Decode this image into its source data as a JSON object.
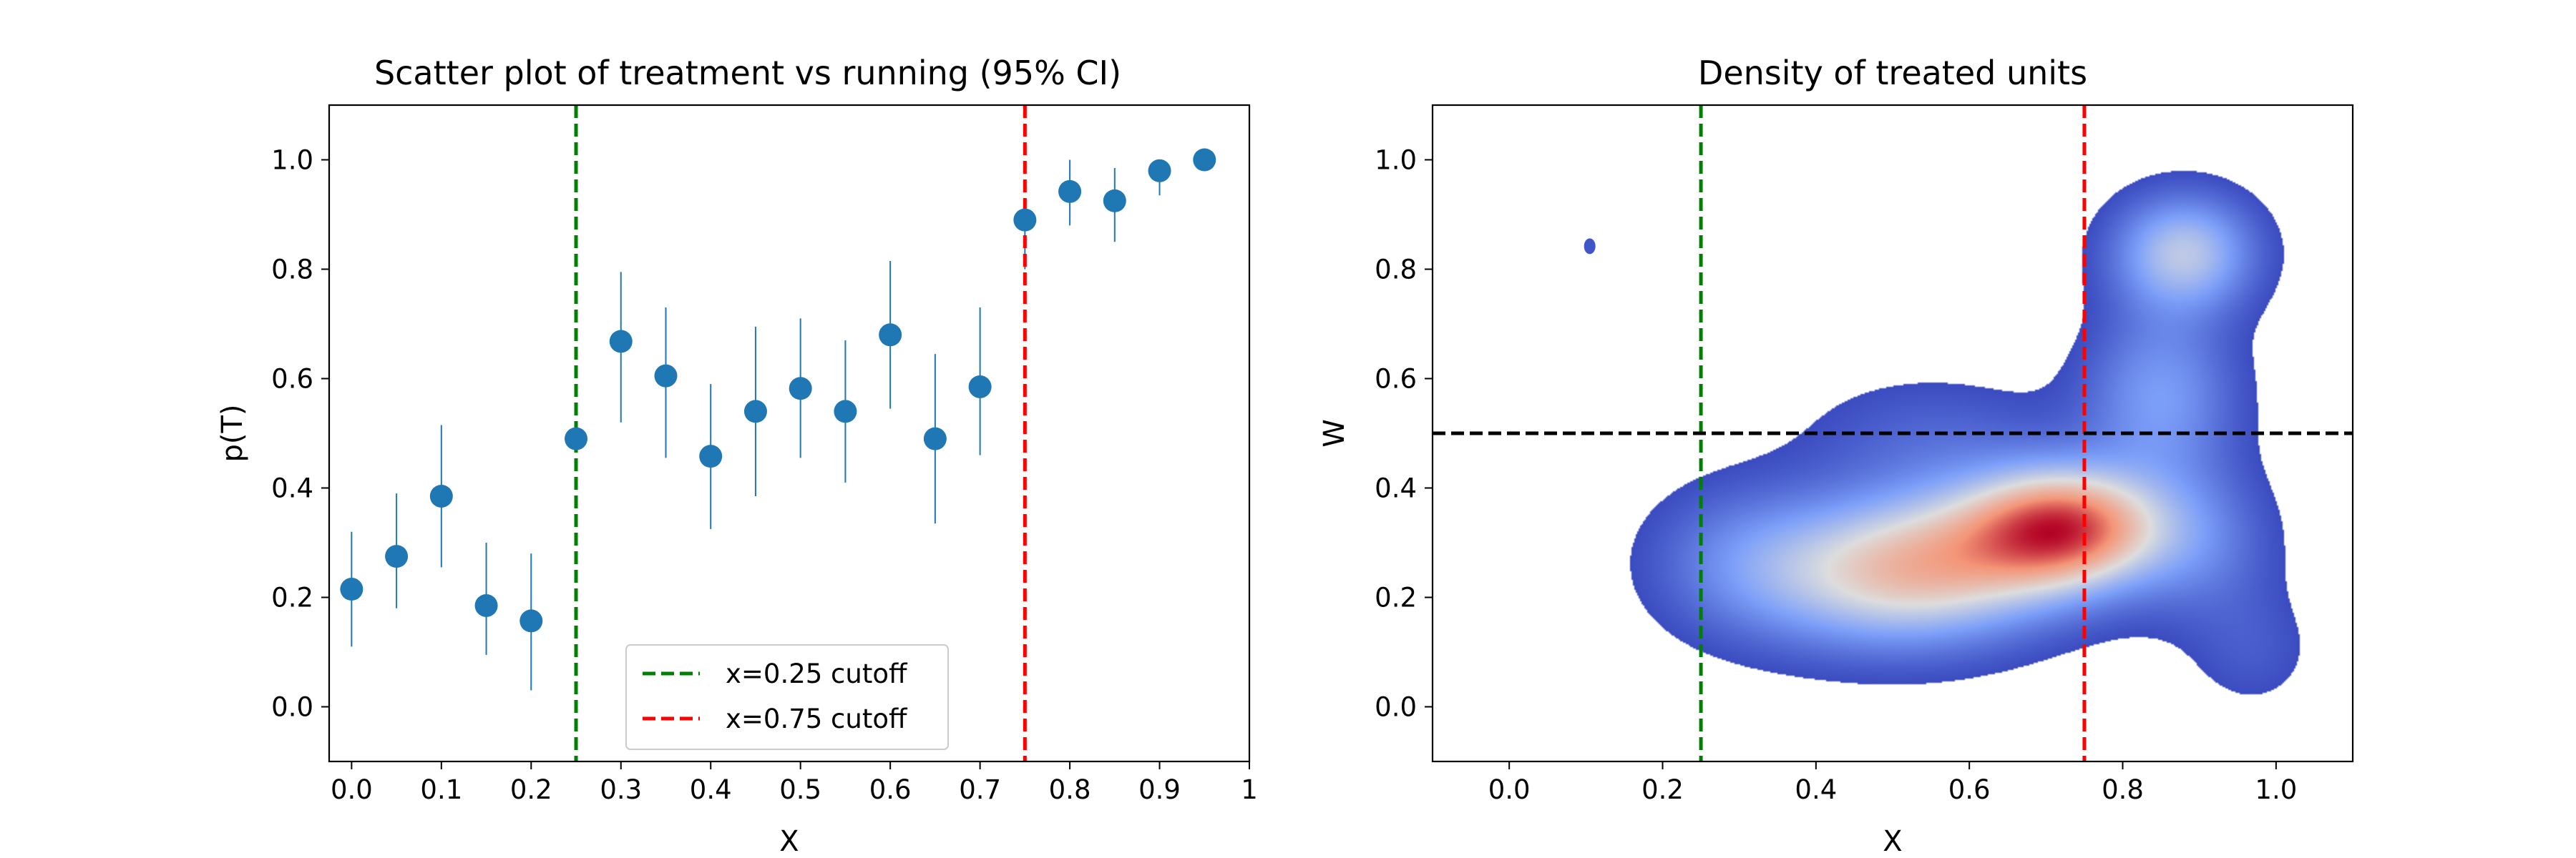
{
  "chart_data": [
    {
      "type": "scatter",
      "title": "Scatter plot of treatment vs running (95% CI)",
      "xlabel": "X",
      "ylabel": "p(T)",
      "xlim": [
        -0.025,
        1.0
      ],
      "ylim": [
        -0.1,
        1.1
      ],
      "xticks": [
        0.0,
        0.1,
        0.2,
        0.3,
        0.4,
        0.5,
        0.6,
        0.7,
        0.8,
        0.9,
        1.0
      ],
      "xtick_labels": [
        "0.0",
        "0.1",
        "0.2",
        "0.3",
        "0.4",
        "0.5",
        "0.6",
        "0.7",
        "0.8",
        "0.9",
        "1"
      ],
      "yticks": [
        0.0,
        0.2,
        0.4,
        0.6,
        0.8,
        1.0
      ],
      "ytick_labels": [
        "0.0",
        "0.2",
        "0.4",
        "0.6",
        "0.8",
        "1.0"
      ],
      "grid": false,
      "legend_position": "bottom-center",
      "marker_color": "#1f77b4",
      "points": [
        {
          "x": 0.0,
          "y": 0.215,
          "lo": 0.11,
          "hi": 0.32
        },
        {
          "x": 0.05,
          "y": 0.275,
          "lo": 0.18,
          "hi": 0.39
        },
        {
          "x": 0.1,
          "y": 0.385,
          "lo": 0.255,
          "hi": 0.515
        },
        {
          "x": 0.15,
          "y": 0.185,
          "lo": 0.095,
          "hi": 0.3
        },
        {
          "x": 0.2,
          "y": 0.157,
          "lo": 0.03,
          "hi": 0.28
        },
        {
          "x": 0.25,
          "y": 0.49,
          "lo": 0.49,
          "hi": 0.49
        },
        {
          "x": 0.3,
          "y": 0.668,
          "lo": 0.52,
          "hi": 0.795
        },
        {
          "x": 0.35,
          "y": 0.605,
          "lo": 0.455,
          "hi": 0.73
        },
        {
          "x": 0.4,
          "y": 0.458,
          "lo": 0.325,
          "hi": 0.59
        },
        {
          "x": 0.45,
          "y": 0.54,
          "lo": 0.385,
          "hi": 0.695
        },
        {
          "x": 0.5,
          "y": 0.582,
          "lo": 0.455,
          "hi": 0.71
        },
        {
          "x": 0.55,
          "y": 0.54,
          "lo": 0.41,
          "hi": 0.67
        },
        {
          "x": 0.6,
          "y": 0.68,
          "lo": 0.545,
          "hi": 0.815
        },
        {
          "x": 0.65,
          "y": 0.49,
          "lo": 0.335,
          "hi": 0.645
        },
        {
          "x": 0.7,
          "y": 0.585,
          "lo": 0.46,
          "hi": 0.73
        },
        {
          "x": 0.75,
          "y": 0.89,
          "lo": 0.8,
          "hi": 0.92
        },
        {
          "x": 0.8,
          "y": 0.942,
          "lo": 0.88,
          "hi": 1.0
        },
        {
          "x": 0.85,
          "y": 0.925,
          "lo": 0.85,
          "hi": 0.985
        },
        {
          "x": 0.9,
          "y": 0.98,
          "lo": 0.935,
          "hi": 1.0
        },
        {
          "x": 0.95,
          "y": 1.0,
          "lo": 1.0,
          "hi": 1.0
        }
      ],
      "cutoffs": [
        {
          "x": 0.25,
          "label": "x=0.25 cutoff",
          "color": "#008000"
        },
        {
          "x": 0.75,
          "label": "x=0.75 cutoff",
          "color": "#ff0000"
        }
      ]
    },
    {
      "type": "heatmap",
      "title": "Density of treated units",
      "xlabel": "X",
      "ylabel": "W",
      "xlim": [
        -0.1,
        1.1
      ],
      "ylim": [
        -0.1,
        1.1
      ],
      "xticks": [
        0.0,
        0.2,
        0.4,
        0.6,
        0.8,
        1.0
      ],
      "xtick_labels": [
        "0.0",
        "0.2",
        "0.4",
        "0.6",
        "0.8",
        "1.0"
      ],
      "yticks": [
        0.0,
        0.2,
        0.4,
        0.6,
        0.8,
        1.0
      ],
      "ytick_labels": [
        "0.0",
        "0.2",
        "0.4",
        "0.6",
        "0.8",
        "1.0"
      ],
      "grid": false,
      "colormap": "coolwarm",
      "vertical_lines": [
        {
          "x": 0.25,
          "color": "#008000"
        },
        {
          "x": 0.75,
          "color": "#ff0000"
        }
      ],
      "horizontal_lines": [
        {
          "y": 0.5,
          "color": "#000000"
        }
      ],
      "density_components": [
        {
          "x": 0.5,
          "y": 0.24,
          "sx": 0.13,
          "sy": 0.095,
          "w": 1.0
        },
        {
          "x": 0.73,
          "y": 0.33,
          "sx": 0.085,
          "sy": 0.075,
          "w": 1.35
        },
        {
          "x": 0.63,
          "y": 0.3,
          "sx": 0.12,
          "sy": 0.09,
          "w": 0.55
        },
        {
          "x": 0.88,
          "y": 0.83,
          "sx": 0.065,
          "sy": 0.075,
          "w": 0.85
        },
        {
          "x": 0.85,
          "y": 0.57,
          "sx": 0.07,
          "sy": 0.11,
          "w": 0.55
        },
        {
          "x": 0.9,
          "y": 0.3,
          "sx": 0.07,
          "sy": 0.1,
          "w": 0.35
        },
        {
          "x": 0.3,
          "y": 0.27,
          "sx": 0.09,
          "sy": 0.1,
          "w": 0.3
        },
        {
          "x": 0.55,
          "y": 0.5,
          "sx": 0.12,
          "sy": 0.08,
          "w": 0.22
        },
        {
          "x": 0.97,
          "y": 0.1,
          "sx": 0.06,
          "sy": 0.08,
          "w": 0.18
        }
      ],
      "outlier_blob": {
        "x": 0.105,
        "y": 0.842
      }
    }
  ]
}
